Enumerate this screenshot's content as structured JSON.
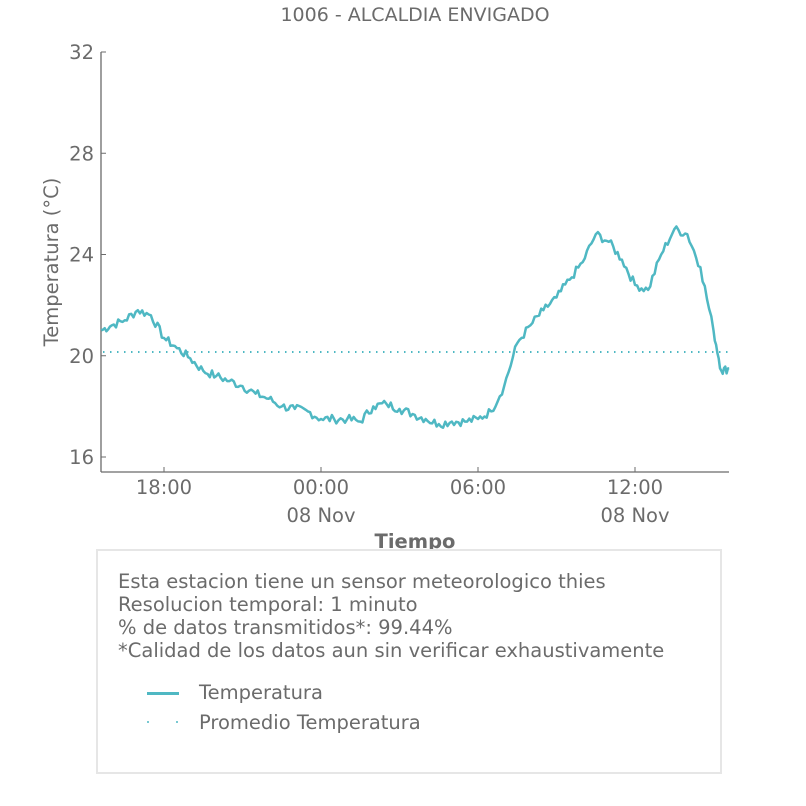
{
  "colors": {
    "series": "#4fb8c3",
    "axis": "#6b6b6b",
    "text": "#6b6b6b",
    "box_border": "#e6e6e6"
  },
  "chart_data": {
    "type": "line",
    "title": "1006 - ALCALDIA ENVIGADO",
    "xlabel": "Tiempo",
    "ylabel": "Temperatura (°C)",
    "ylim": [
      15.4,
      32
    ],
    "yticks": [
      16,
      20,
      24,
      28,
      32
    ],
    "ytick_labels": [
      "16",
      "20",
      "24",
      "28",
      "32"
    ],
    "xlim_hours": [
      -2.4,
      21.6
    ],
    "xticks_hours": [
      0,
      6,
      12,
      18
    ],
    "xtick_labels": [
      {
        "time": "18:00",
        "date": ""
      },
      {
        "time": "00:00",
        "date": "08 Nov"
      },
      {
        "time": "06:00",
        "date": ""
      },
      {
        "time": "12:00",
        "date": "08 Nov"
      }
    ],
    "grid": false,
    "legend_position": "below",
    "series": [
      {
        "name": "Temperatura",
        "style": "solid",
        "x_hours_from_18": [
          -2.4,
          -2.0,
          -1.5,
          -1.0,
          -0.5,
          0.0,
          0.5,
          1.0,
          1.5,
          2.0,
          2.5,
          3.0,
          3.5,
          4.0,
          4.5,
          5.0,
          5.5,
          6.0,
          6.5,
          7.0,
          7.5,
          8.0,
          8.5,
          9.0,
          9.5,
          10.0,
          10.5,
          11.0,
          11.5,
          12.0,
          12.5,
          13.0,
          13.5,
          14.0,
          14.5,
          15.0,
          15.5,
          16.0,
          16.5,
          17.0,
          17.5,
          18.0,
          18.5,
          19.0,
          19.5,
          20.0,
          20.5,
          21.0,
          21.3,
          21.6
        ],
        "values": [
          21.0,
          21.2,
          21.4,
          21.8,
          21.6,
          20.7,
          20.3,
          19.9,
          19.4,
          19.2,
          19.0,
          18.8,
          18.5,
          18.3,
          18.0,
          17.9,
          17.8,
          17.5,
          17.5,
          17.5,
          17.4,
          18.0,
          18.1,
          17.9,
          17.7,
          17.5,
          17.3,
          17.4,
          17.4,
          17.5,
          17.8,
          18.8,
          20.5,
          21.2,
          21.8,
          22.3,
          23.0,
          23.7,
          24.8,
          24.5,
          23.8,
          22.8,
          22.6,
          24.0,
          25.0,
          24.8,
          23.5,
          21.0,
          19.4,
          19.5
        ]
      },
      {
        "name": "Promedio Temperatura",
        "style": "dotted",
        "value": 20.15
      }
    ]
  },
  "info": {
    "lines": [
      "Esta estacion tiene un sensor meteorologico thies",
      "Resolucion temporal: 1 minuto",
      "% de datos transmitidos*: 99.44%",
      "*Calidad de los datos aun sin verificar exhaustivamente"
    ],
    "legend": [
      {
        "label": "Temperatura",
        "icon": "solid-line"
      },
      {
        "label": "Promedio Temperatura",
        "icon": "dotted-line"
      }
    ]
  }
}
